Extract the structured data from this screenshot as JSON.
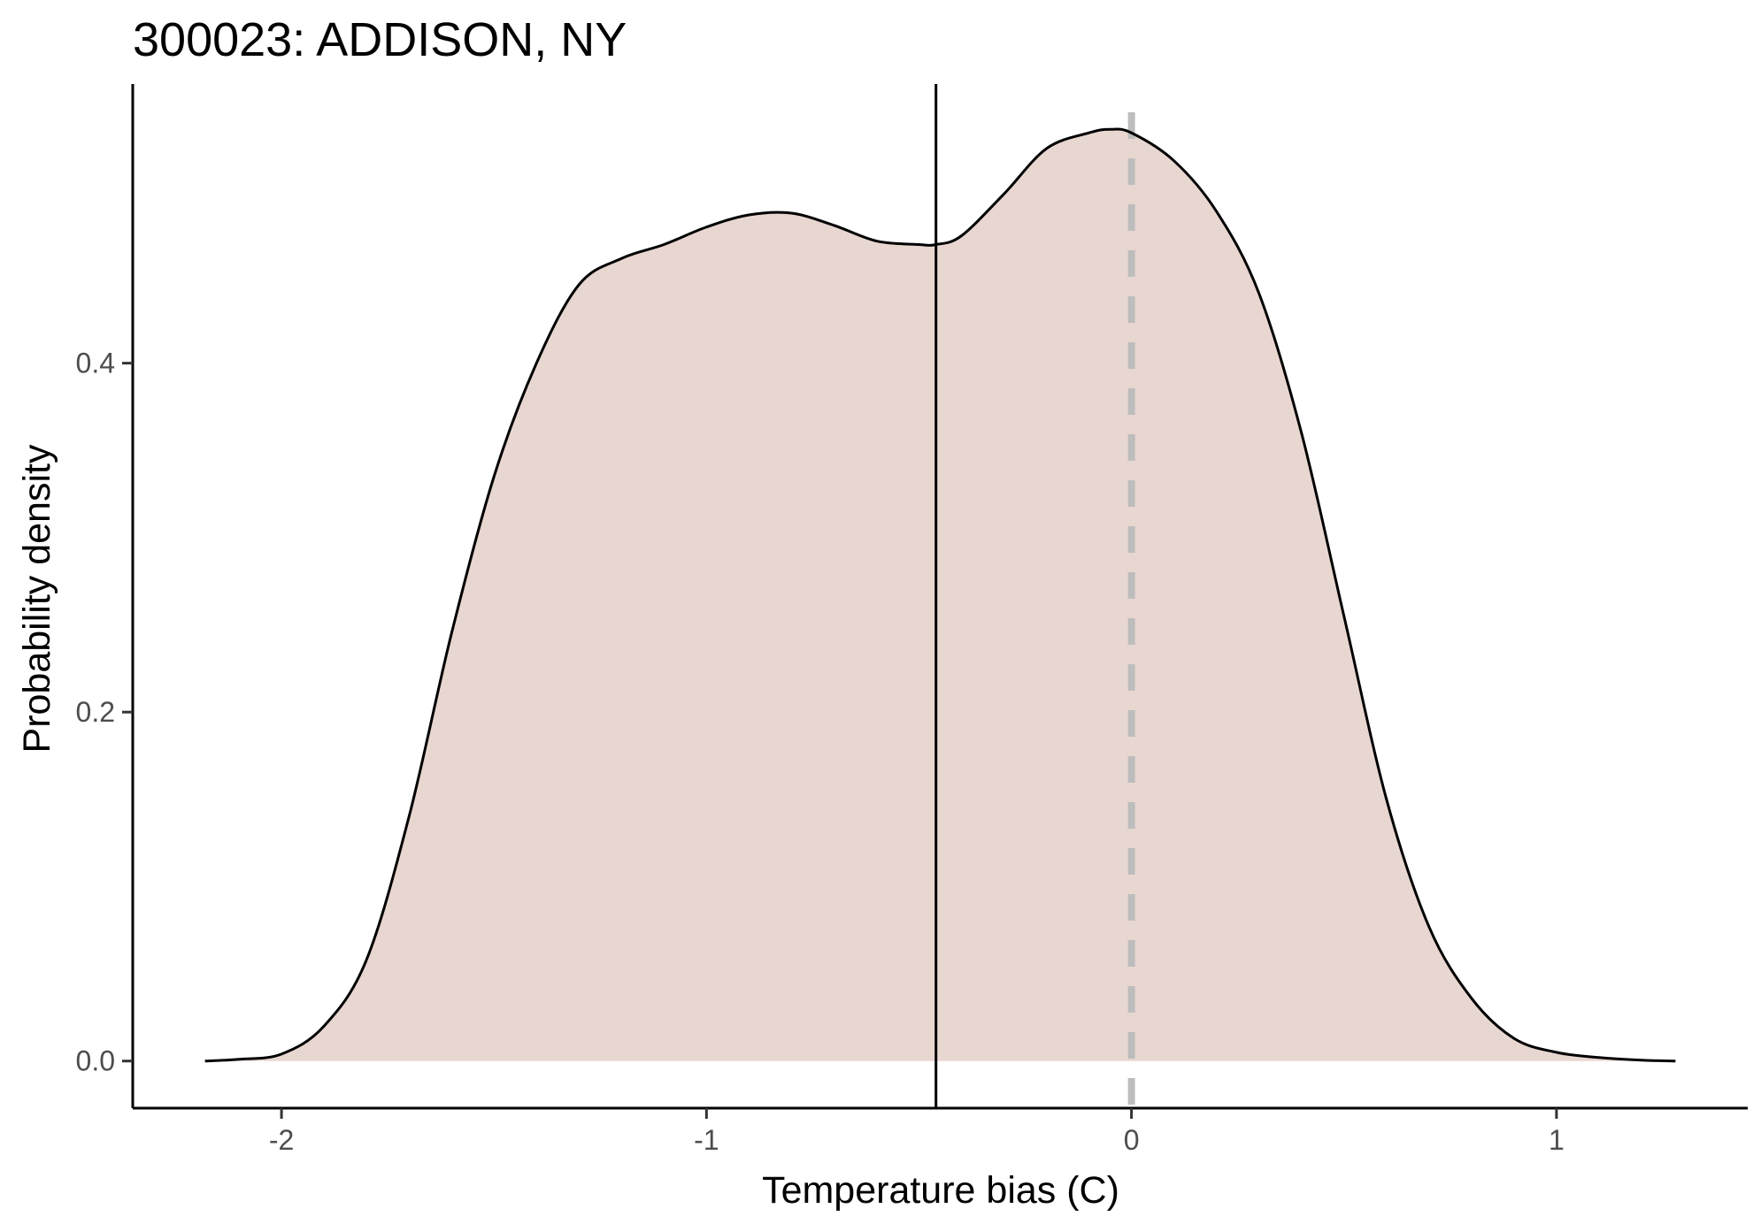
{
  "chart_data": {
    "type": "area",
    "title": "300023: ADDISON, NY",
    "xlabel": "Temperature bias (C)",
    "ylabel": "Probability density",
    "xlim": [
      -2.35,
      1.45
    ],
    "ylim": [
      -0.027,
      0.56
    ],
    "x_ticks": [
      -2,
      -1,
      0,
      1
    ],
    "x_tick_labels": [
      "-2",
      "-1",
      "0",
      "1"
    ],
    "y_ticks": [
      0.0,
      0.2,
      0.4
    ],
    "y_tick_labels": [
      "0.0",
      "0.2",
      "0.4"
    ],
    "grid": false,
    "legend": "none",
    "fill_color": "#e8d6d0",
    "line_color": "#000000",
    "vline_mean": -0.46,
    "vline_zero": 0,
    "vline_zero_color": "#bdbdbd",
    "series": [
      {
        "x": [
          -2.18,
          -2.1,
          -2.0,
          -1.9,
          -1.8,
          -1.7,
          -1.6,
          -1.5,
          -1.4,
          -1.3,
          -1.2,
          -1.1,
          -1.0,
          -0.9,
          -0.8,
          -0.7,
          -0.6,
          -0.5,
          -0.46,
          -0.4,
          -0.3,
          -0.2,
          -0.1,
          -0.05,
          0.0,
          0.1,
          0.2,
          0.3,
          0.4,
          0.5,
          0.6,
          0.7,
          0.8,
          0.9,
          1.0,
          1.1,
          1.2,
          1.28
        ],
        "y": [
          0.0,
          0.001,
          0.004,
          0.02,
          0.058,
          0.14,
          0.245,
          0.335,
          0.4,
          0.445,
          0.46,
          0.468,
          0.478,
          0.485,
          0.486,
          0.479,
          0.47,
          0.468,
          0.468,
          0.473,
          0.497,
          0.523,
          0.532,
          0.534,
          0.532,
          0.516,
          0.487,
          0.44,
          0.36,
          0.255,
          0.15,
          0.077,
          0.036,
          0.013,
          0.005,
          0.002,
          0.0005,
          0.0
        ]
      }
    ]
  }
}
